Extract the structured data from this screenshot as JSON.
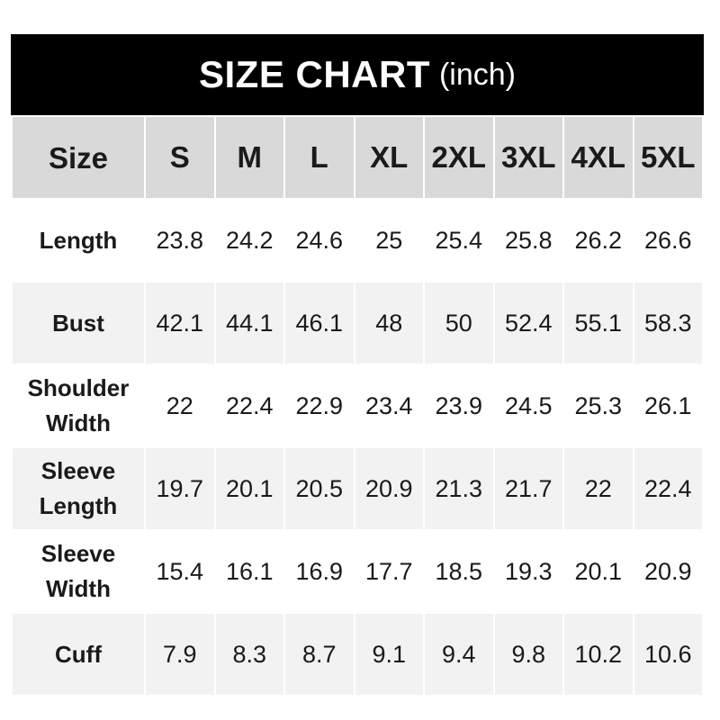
{
  "title": {
    "main": "SIZE CHART",
    "unit": "(inch)"
  },
  "colors": {
    "title_bg": "#000000",
    "header_bg": "#d9d9d9",
    "alt_row_bg": "#f2f2f2"
  },
  "header": [
    "Size",
    "S",
    "M",
    "L",
    "XL",
    "2XL",
    "3XL",
    "4XL",
    "5XL"
  ],
  "rows": [
    {
      "label": "Length",
      "values": [
        "23.8",
        "24.2",
        "24.6",
        "25",
        "25.4",
        "25.8",
        "26.2",
        "26.6"
      ]
    },
    {
      "label": "Bust",
      "values": [
        "42.1",
        "44.1",
        "46.1",
        "48",
        "50",
        "52.4",
        "55.1",
        "58.3"
      ]
    },
    {
      "label": "Shoulder Width",
      "values": [
        "22",
        "22.4",
        "22.9",
        "23.4",
        "23.9",
        "24.5",
        "25.3",
        "26.1"
      ]
    },
    {
      "label": "Sleeve Length",
      "values": [
        "19.7",
        "20.1",
        "20.5",
        "20.9",
        "21.3",
        "21.7",
        "22",
        "22.4"
      ]
    },
    {
      "label": "Sleeve Width",
      "values": [
        "15.4",
        "16.1",
        "16.9",
        "17.7",
        "18.5",
        "19.3",
        "20.1",
        "20.9"
      ]
    },
    {
      "label": "Cuff",
      "values": [
        "7.9",
        "8.3",
        "8.7",
        "9.1",
        "9.4",
        "9.8",
        "10.2",
        "10.6"
      ]
    }
  ]
}
